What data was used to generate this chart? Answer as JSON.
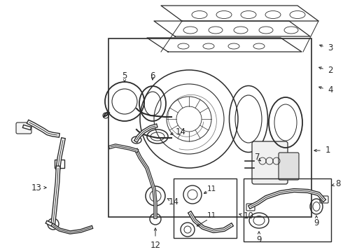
{
  "bg_color": "#ffffff",
  "line_color": "#2a2a2a",
  "label_color": "#000000",
  "fig_width": 4.9,
  "fig_height": 3.6,
  "dpi": 100,
  "font_size": 8.5,
  "lw": 1.0
}
